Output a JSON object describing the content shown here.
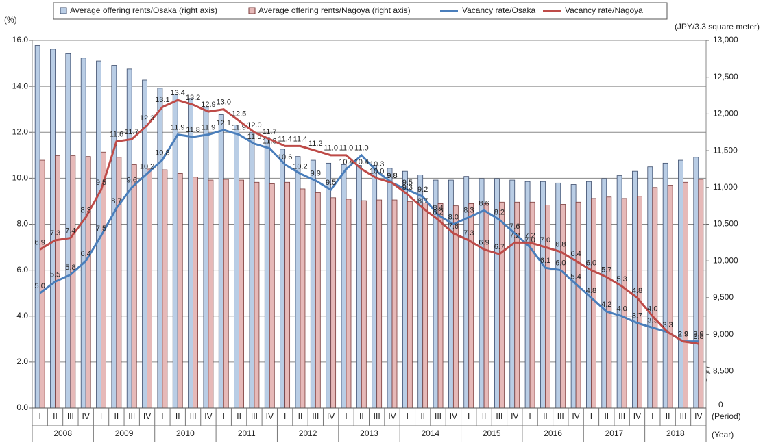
{
  "chart_data": {
    "type": "bar-line",
    "left_unit": "(%)",
    "right_unit": "(JPY/3.3 square meter)",
    "x_axis_label": "(Period)",
    "year_axis_label": "(Year)",
    "categories": [
      "I",
      "II",
      "III",
      "IV",
      "I",
      "II",
      "III",
      "IV",
      "I",
      "II",
      "III",
      "IV",
      "I",
      "II",
      "III",
      "IV",
      "I",
      "II",
      "III",
      "IV",
      "I",
      "II",
      "III",
      "IV",
      "I",
      "II",
      "III",
      "IV",
      "I",
      "II",
      "III",
      "IV",
      "I",
      "II",
      "III",
      "IV",
      "I",
      "II",
      "III",
      "IV",
      "I",
      "II",
      "III",
      "IV"
    ],
    "years": [
      "2008",
      "2009",
      "2010",
      "2011",
      "2012",
      "2013",
      "2014",
      "2015",
      "2016",
      "2017",
      "2018"
    ],
    "ylim": [
      0,
      16
    ],
    "yticks": [
      {
        "value": 0,
        "label": "0.0"
      },
      {
        "value": 2,
        "label": "2.0"
      },
      {
        "value": 4,
        "label": "4.0"
      },
      {
        "value": 6,
        "label": "6.0"
      },
      {
        "value": 8,
        "label": "8.0"
      },
      {
        "value": 10,
        "label": "10.0"
      },
      {
        "value": 12,
        "label": "12.0"
      },
      {
        "value": 14,
        "label": "14.0"
      },
      {
        "value": 16,
        "label": "16.0"
      }
    ],
    "y2lim": [
      8000,
      13000
    ],
    "y2ticks": [
      {
        "value": 8500,
        "label": "8,500"
      },
      {
        "value": 9000,
        "label": "9,000"
      },
      {
        "value": 9500,
        "label": "9,500"
      },
      {
        "value": 10000,
        "label": "10,000"
      },
      {
        "value": 10500,
        "label": "10,500"
      },
      {
        "value": 11000,
        "label": "11,000"
      },
      {
        "value": 11500,
        "label": "11,500"
      },
      {
        "value": 12000,
        "label": "12,000"
      },
      {
        "value": 12500,
        "label": "12,500"
      },
      {
        "value": 13000,
        "label": "13,000"
      }
    ],
    "y2_break_label": "0",
    "grid": true,
    "value_label_decimals": 1,
    "series": [
      {
        "name": "Average offering rents/Osaka (right axis)",
        "type": "bar",
        "axis": "y2",
        "color": "#b9cde5",
        "edge": "#3b4b6b",
        "values": [
          12930,
          12880,
          12820,
          12760,
          12720,
          12660,
          12610,
          12460,
          12350,
          12270,
          12210,
          12090,
          11990,
          11850,
          11750,
          11680,
          11520,
          11420,
          11370,
          11330,
          11310,
          11300,
          11300,
          11260,
          11220,
          11170,
          11100,
          11100,
          11150,
          11120,
          11120,
          11100,
          11080,
          11080,
          11060,
          11040,
          11080,
          11120,
          11160,
          11220,
          11280,
          11330,
          11370,
          11410
        ]
      },
      {
        "name": "Average offering rents/Nagoya (right axis)",
        "type": "bar",
        "axis": "y2",
        "color": "#e6b9b8",
        "edge": "#7a3b3a",
        "values": [
          11370,
          11430,
          11430,
          11420,
          11480,
          11410,
          11310,
          11250,
          11240,
          11190,
          11140,
          11100,
          11110,
          11100,
          11070,
          11050,
          11070,
          10980,
          10930,
          10860,
          10840,
          10820,
          10830,
          10830,
          10810,
          10790,
          10780,
          10750,
          10780,
          10780,
          10800,
          10800,
          10800,
          10760,
          10770,
          10800,
          10850,
          10870,
          10850,
          10880,
          11000,
          11030,
          11070,
          11110
        ]
      },
      {
        "name": "Vacancy rate/Osaka",
        "type": "line",
        "color": "#4a7ebb",
        "values": [
          5.0,
          5.5,
          5.8,
          6.4,
          7.5,
          8.7,
          9.6,
          10.2,
          10.8,
          11.9,
          11.8,
          11.9,
          12.1,
          11.9,
          11.5,
          11.3,
          10.6,
          10.2,
          9.9,
          9.5,
          10.4,
          11.0,
          10.3,
          9.8,
          9.5,
          9.2,
          8.4,
          8.0,
          8.3,
          8.6,
          8.2,
          7.6,
          7.0,
          6.1,
          6.0,
          5.4,
          4.8,
          4.2,
          4.0,
          3.7,
          3.5,
          3.3,
          2.9,
          2.9
        ]
      },
      {
        "name": "Vacancy rate/Nagoya",
        "type": "line",
        "color": "#be4b48",
        "values": [
          6.9,
          7.3,
          7.4,
          8.3,
          9.5,
          11.6,
          11.7,
          12.3,
          13.1,
          13.4,
          13.2,
          12.9,
          13.0,
          12.5,
          12.0,
          11.7,
          11.4,
          11.4,
          11.2,
          11.0,
          11.0,
          10.4,
          10.0,
          9.8,
          9.3,
          8.7,
          8.2,
          7.6,
          7.3,
          6.9,
          6.7,
          7.2,
          7.2,
          7.0,
          6.8,
          6.4,
          6.0,
          5.7,
          5.3,
          4.8,
          4.0,
          3.3,
          2.9,
          2.8
        ]
      }
    ]
  }
}
